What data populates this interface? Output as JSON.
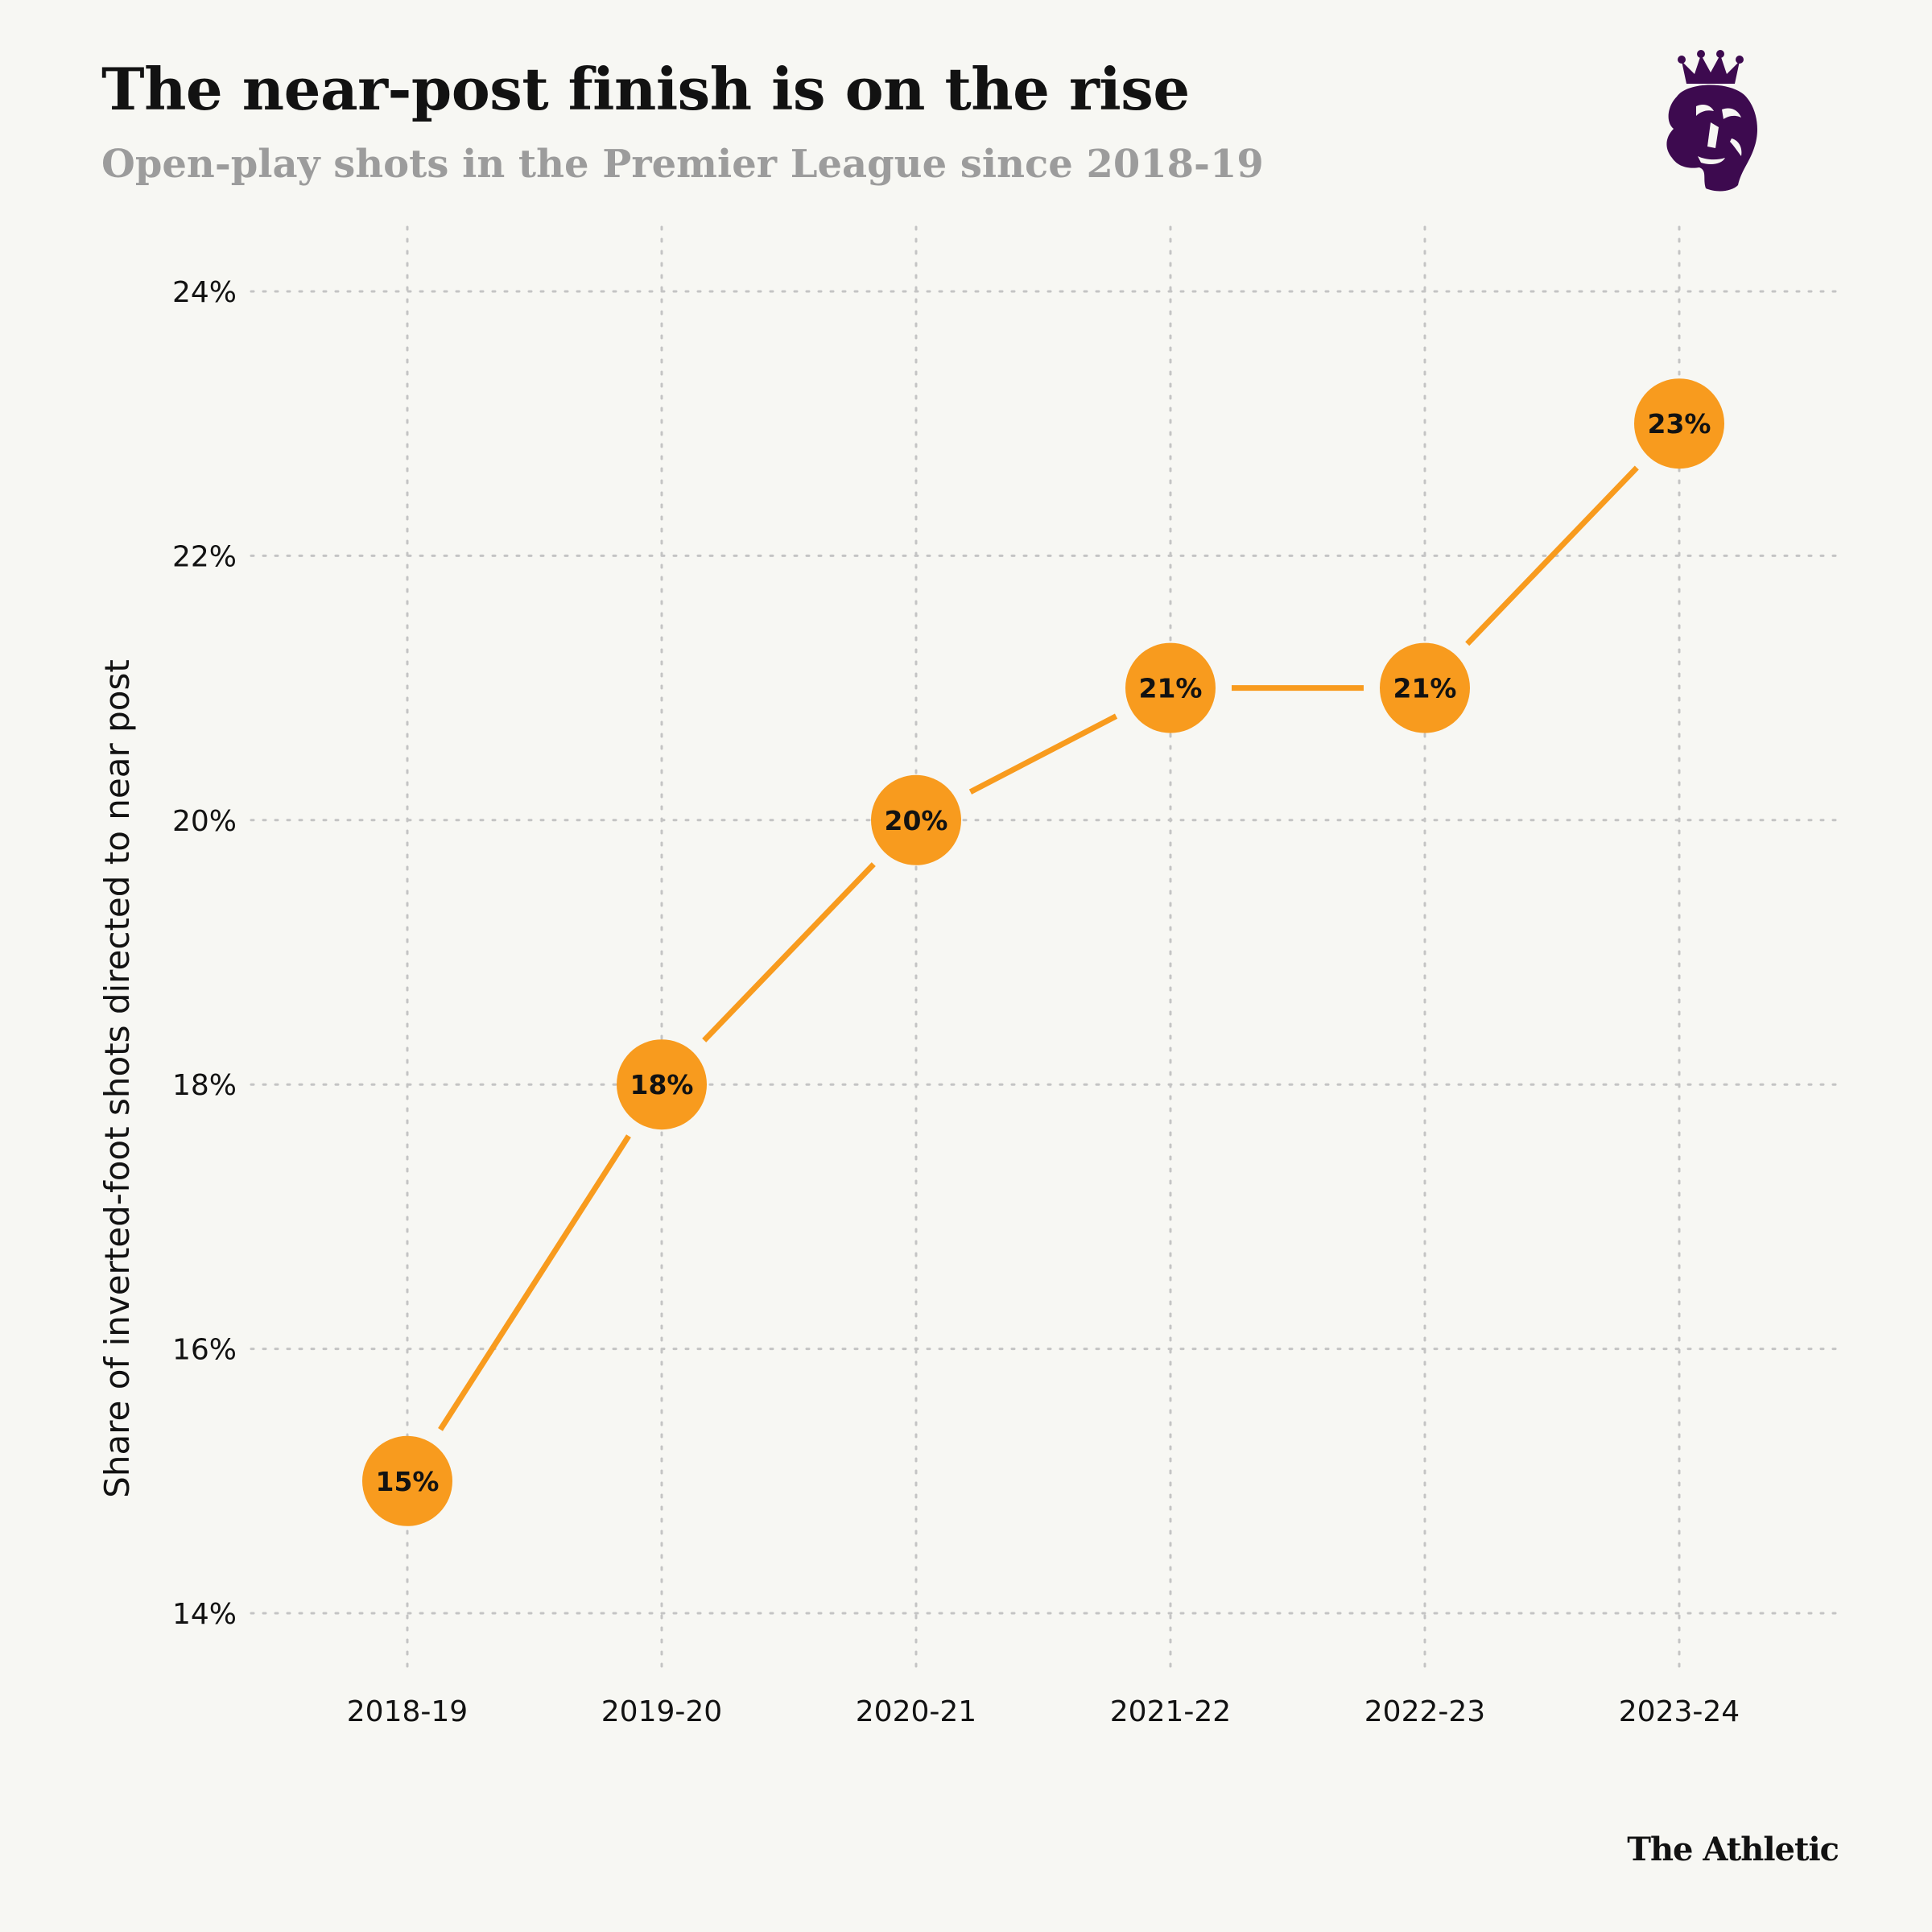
{
  "header": {
    "title": "The near-post finish is on the rise",
    "subtitle": "Open-play shots in the Premier League since 2018-19"
  },
  "brand": {
    "name": "The Athletic",
    "logo_icon": "premier-league-lion-icon",
    "logo_color": "#3d0a4f"
  },
  "colors": {
    "marker": "#f89b1e",
    "line": "#f89b1e",
    "grid": "#c4c4c4",
    "background": "#f7f7f3"
  },
  "chart_data": {
    "type": "line",
    "title": "The near-post finish is on the rise",
    "subtitle": "Open-play shots in the Premier League since 2018-19",
    "categories": [
      "2018-19",
      "2019-20",
      "2020-21",
      "2021-22",
      "2022-23",
      "2023-24"
    ],
    "series": [
      {
        "values": [
          15,
          18,
          20,
          21,
          21,
          23
        ],
        "labels": [
          "15%",
          "18%",
          "20%",
          "21%",
          "21%",
          "23%"
        ]
      }
    ],
    "xlabel": "",
    "ylabel": "Share of inverted-foot shots directed to near post",
    "ylim": [
      14,
      24
    ],
    "yticks": [
      14,
      16,
      18,
      20,
      22,
      24
    ],
    "ytick_labels": [
      "14%",
      "16%",
      "18%",
      "20%",
      "22%",
      "24%"
    ],
    "grid": true,
    "grid_style": "dotted"
  }
}
